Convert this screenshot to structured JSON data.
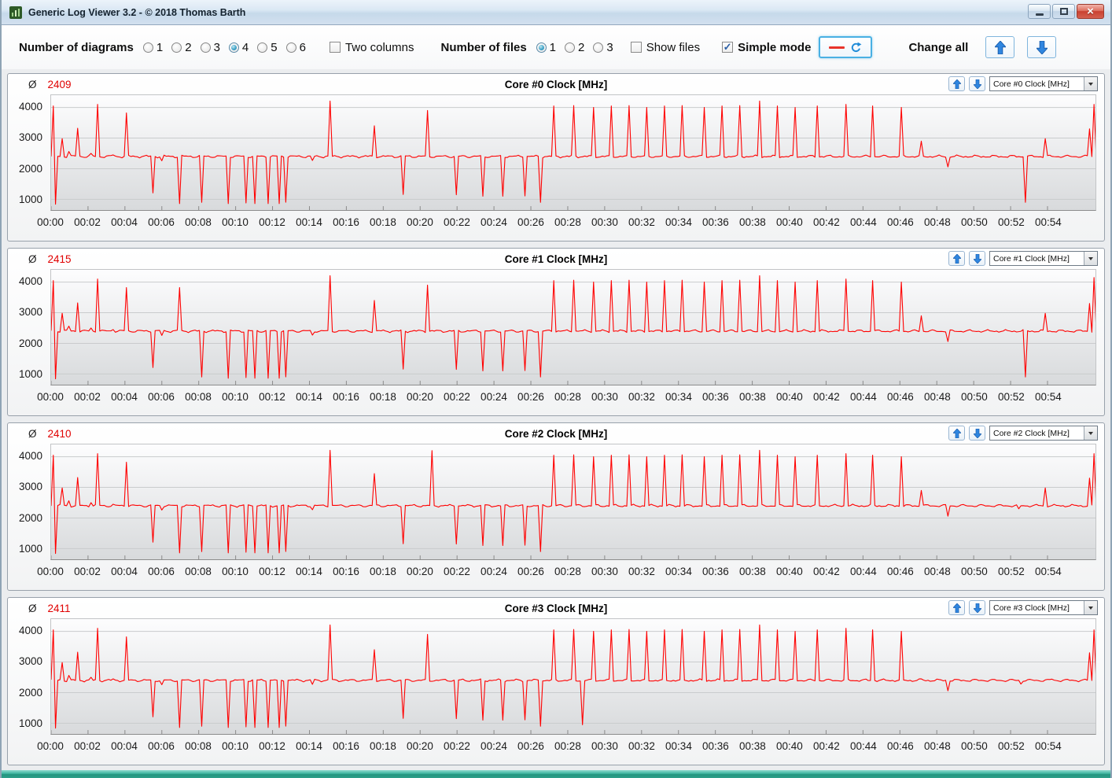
{
  "window": {
    "title": "Generic Log Viewer 3.2 - © 2018 Thomas Barth"
  },
  "icons": {
    "app": "chart-icon",
    "minimize": "minimize-icon",
    "maximize": "maximize-icon",
    "close": "close-icon",
    "close_glyph": "×",
    "check_glyph": "✓",
    "refresh": "refresh-icon",
    "legend_line": "red-line-icon",
    "arrow_up": "arrow-up-icon",
    "arrow_down": "arrow-down-icon",
    "dropdown": "chevron-down-icon"
  },
  "toolbar": {
    "number_of_diagrams_label": "Number of diagrams",
    "diagram_options": [
      "1",
      "2",
      "3",
      "4",
      "5",
      "6"
    ],
    "diagrams_selected": "4",
    "two_columns_label": "Two columns",
    "two_columns_checked": false,
    "number_of_files_label": "Number of files",
    "file_options": [
      "1",
      "2",
      "3"
    ],
    "files_selected": "1",
    "show_files_label": "Show files",
    "show_files_checked": false,
    "simple_mode_label": "Simple mode",
    "simple_mode_checked": true,
    "change_all_label": "Change all"
  },
  "panels_common": {
    "avg_symbol": "Ø"
  },
  "charts": [
    {
      "avg": "2409",
      "title": "Core #0 Clock [MHz]",
      "dropdown": "Core #0 Clock [MHz]"
    },
    {
      "avg": "2415",
      "title": "Core #1 Clock [MHz]",
      "dropdown": "Core #1 Clock [MHz]"
    },
    {
      "avg": "2410",
      "title": "Core #2 Clock [MHz]",
      "dropdown": "Core #2 Clock [MHz]"
    },
    {
      "avg": "2411",
      "title": "Core #3 Clock [MHz]",
      "dropdown": "Core #3 Clock [MHz]"
    }
  ],
  "chart_data": {
    "type": "line",
    "line_color": "#ff0000",
    "grid": "horizontal",
    "baseline": 2400,
    "xlim": [
      0,
      56.6
    ],
    "ylim": [
      650,
      4400
    ],
    "y_ticks": [
      1000,
      2000,
      3000,
      4000
    ],
    "x_ticks": [
      "00:00",
      "00:02",
      "00:04",
      "00:06",
      "00:08",
      "00:10",
      "00:12",
      "00:14",
      "00:16",
      "00:18",
      "00:20",
      "00:22",
      "00:24",
      "00:26",
      "00:28",
      "00:30",
      "00:32",
      "00:34",
      "00:36",
      "00:38",
      "00:40",
      "00:42",
      "00:44",
      "00:46",
      "00:48",
      "00:50",
      "00:52",
      "00:54"
    ],
    "series": [
      {
        "name": "Core #0 Clock [MHz]",
        "events": [
          [
            0.1,
            4050
          ],
          [
            0.25,
            840
          ],
          [
            0.6,
            2980
          ],
          [
            0.95,
            2560
          ],
          [
            1.45,
            3320
          ],
          [
            2.2,
            2500
          ],
          [
            2.55,
            4100
          ],
          [
            3.3,
            2450
          ],
          [
            4.05,
            3820
          ],
          [
            5.55,
            1210
          ],
          [
            6.0,
            2260
          ],
          [
            6.95,
            860
          ],
          [
            8.2,
            900
          ],
          [
            9.55,
            860
          ],
          [
            10.5,
            880
          ],
          [
            11.05,
            860
          ],
          [
            11.75,
            860
          ],
          [
            12.35,
            860
          ],
          [
            12.75,
            905
          ],
          [
            14.2,
            2270
          ],
          [
            15.1,
            4210
          ],
          [
            17.55,
            3400
          ],
          [
            19.05,
            1160
          ],
          [
            20.4,
            3900
          ],
          [
            21.95,
            1150
          ],
          [
            23.35,
            1100
          ],
          [
            24.5,
            1100
          ],
          [
            25.65,
            1110
          ],
          [
            26.55,
            900
          ],
          [
            27.2,
            4050
          ],
          [
            28.35,
            4060
          ],
          [
            29.35,
            4000
          ],
          [
            30.3,
            4050
          ],
          [
            31.3,
            4060
          ],
          [
            32.25,
            4000
          ],
          [
            33.25,
            4050
          ],
          [
            34.25,
            4060
          ],
          [
            35.35,
            4000
          ],
          [
            36.35,
            4050
          ],
          [
            37.35,
            4060
          ],
          [
            38.4,
            4210
          ],
          [
            39.4,
            4050
          ],
          [
            40.35,
            4000
          ],
          [
            41.55,
            4050
          ],
          [
            43.05,
            4100
          ],
          [
            44.55,
            4050
          ],
          [
            46.05,
            4000
          ],
          [
            47.1,
            2900
          ],
          [
            48.65,
            2060
          ],
          [
            52.8,
            900
          ],
          [
            53.9,
            2980
          ],
          [
            56.3,
            3300
          ],
          [
            56.5,
            4100
          ]
        ]
      },
      {
        "name": "Core #1 Clock [MHz]",
        "events": [
          [
            0.1,
            4050
          ],
          [
            0.25,
            840
          ],
          [
            0.6,
            2980
          ],
          [
            0.95,
            2560
          ],
          [
            1.45,
            3320
          ],
          [
            2.2,
            2500
          ],
          [
            2.55,
            4100
          ],
          [
            3.3,
            2450
          ],
          [
            4.05,
            3820
          ],
          [
            5.55,
            1210
          ],
          [
            6.0,
            2260
          ],
          [
            7.0,
            3820
          ],
          [
            8.2,
            900
          ],
          [
            9.55,
            860
          ],
          [
            10.5,
            880
          ],
          [
            11.05,
            860
          ],
          [
            11.75,
            860
          ],
          [
            12.35,
            860
          ],
          [
            12.75,
            905
          ],
          [
            14.2,
            2270
          ],
          [
            15.1,
            4210
          ],
          [
            17.55,
            3400
          ],
          [
            19.05,
            1160
          ],
          [
            20.4,
            3900
          ],
          [
            21.95,
            1150
          ],
          [
            23.35,
            1100
          ],
          [
            24.5,
            1100
          ],
          [
            25.65,
            1110
          ],
          [
            26.55,
            900
          ],
          [
            27.2,
            4050
          ],
          [
            28.35,
            4060
          ],
          [
            29.35,
            4000
          ],
          [
            30.3,
            4050
          ],
          [
            31.3,
            4060
          ],
          [
            32.25,
            4000
          ],
          [
            33.25,
            4050
          ],
          [
            34.25,
            4060
          ],
          [
            35.35,
            4000
          ],
          [
            36.35,
            4050
          ],
          [
            37.35,
            4060
          ],
          [
            38.4,
            4210
          ],
          [
            39.4,
            4050
          ],
          [
            40.35,
            4000
          ],
          [
            41.55,
            4050
          ],
          [
            43.05,
            4100
          ],
          [
            44.55,
            4050
          ],
          [
            46.05,
            4000
          ],
          [
            47.1,
            2900
          ],
          [
            48.65,
            2060
          ],
          [
            52.8,
            900
          ],
          [
            53.9,
            2980
          ],
          [
            56.3,
            3300
          ],
          [
            56.5,
            4150
          ]
        ]
      },
      {
        "name": "Core #2 Clock [MHz]",
        "events": [
          [
            0.1,
            4050
          ],
          [
            0.25,
            840
          ],
          [
            0.6,
            2980
          ],
          [
            0.95,
            2560
          ],
          [
            1.45,
            3320
          ],
          [
            2.2,
            2500
          ],
          [
            2.55,
            4100
          ],
          [
            3.3,
            2450
          ],
          [
            4.05,
            3820
          ],
          [
            5.55,
            1210
          ],
          [
            6.0,
            2260
          ],
          [
            6.95,
            860
          ],
          [
            8.2,
            900
          ],
          [
            9.55,
            860
          ],
          [
            10.5,
            880
          ],
          [
            11.05,
            860
          ],
          [
            11.75,
            860
          ],
          [
            12.35,
            860
          ],
          [
            12.75,
            905
          ],
          [
            14.2,
            2270
          ],
          [
            15.1,
            4210
          ],
          [
            17.5,
            3450
          ],
          [
            19.05,
            1160
          ],
          [
            20.6,
            4200
          ],
          [
            21.95,
            1150
          ],
          [
            23.35,
            1100
          ],
          [
            24.5,
            1100
          ],
          [
            25.65,
            1110
          ],
          [
            26.55,
            900
          ],
          [
            27.2,
            4050
          ],
          [
            28.35,
            4060
          ],
          [
            29.35,
            4000
          ],
          [
            30.3,
            4050
          ],
          [
            31.3,
            4060
          ],
          [
            32.25,
            4000
          ],
          [
            33.25,
            4050
          ],
          [
            34.25,
            4060
          ],
          [
            35.35,
            4000
          ],
          [
            36.35,
            4050
          ],
          [
            37.35,
            4060
          ],
          [
            38.4,
            4210
          ],
          [
            39.4,
            4050
          ],
          [
            40.35,
            4000
          ],
          [
            41.55,
            4050
          ],
          [
            43.05,
            4100
          ],
          [
            44.55,
            4050
          ],
          [
            46.05,
            4000
          ],
          [
            47.1,
            2900
          ],
          [
            48.65,
            2060
          ],
          [
            52.4,
            2300
          ],
          [
            53.9,
            2980
          ],
          [
            56.3,
            3300
          ],
          [
            56.5,
            4100
          ]
        ]
      },
      {
        "name": "Core #3 Clock [MHz]",
        "events": [
          [
            0.1,
            4050
          ],
          [
            0.25,
            840
          ],
          [
            0.6,
            2980
          ],
          [
            0.95,
            2560
          ],
          [
            1.45,
            3320
          ],
          [
            2.2,
            2500
          ],
          [
            2.55,
            4100
          ],
          [
            3.3,
            2450
          ],
          [
            4.05,
            3820
          ],
          [
            5.55,
            1210
          ],
          [
            6.0,
            2260
          ],
          [
            6.95,
            860
          ],
          [
            8.2,
            900
          ],
          [
            9.55,
            860
          ],
          [
            10.5,
            880
          ],
          [
            11.05,
            860
          ],
          [
            11.75,
            860
          ],
          [
            12.35,
            860
          ],
          [
            12.75,
            905
          ],
          [
            14.2,
            2270
          ],
          [
            15.1,
            4210
          ],
          [
            17.55,
            3400
          ],
          [
            19.05,
            1160
          ],
          [
            20.4,
            3900
          ],
          [
            21.95,
            1150
          ],
          [
            23.35,
            1100
          ],
          [
            24.5,
            1100
          ],
          [
            25.65,
            1110
          ],
          [
            26.55,
            900
          ],
          [
            27.2,
            4050
          ],
          [
            28.35,
            4060
          ],
          [
            28.75,
            950
          ],
          [
            29.35,
            4000
          ],
          [
            30.3,
            4050
          ],
          [
            31.3,
            4060
          ],
          [
            32.25,
            4000
          ],
          [
            33.25,
            4050
          ],
          [
            34.25,
            4060
          ],
          [
            35.35,
            4000
          ],
          [
            36.35,
            4050
          ],
          [
            37.35,
            4060
          ],
          [
            38.4,
            4210
          ],
          [
            39.4,
            4050
          ],
          [
            40.35,
            4000
          ],
          [
            41.55,
            4050
          ],
          [
            43.05,
            4100
          ],
          [
            44.55,
            4050
          ],
          [
            46.05,
            4000
          ],
          [
            47.1,
            2450
          ],
          [
            48.65,
            2060
          ],
          [
            52.6,
            2280
          ],
          [
            54.2,
            2440
          ],
          [
            56.3,
            3300
          ],
          [
            56.5,
            4050
          ]
        ]
      }
    ]
  }
}
